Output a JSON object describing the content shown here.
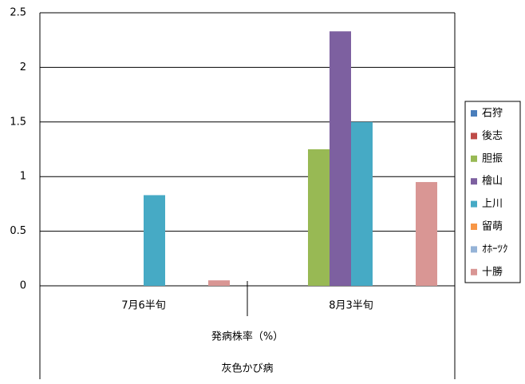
{
  "chart_data": {
    "type": "bar",
    "categories": [
      "7月6半旬",
      "8月3半旬"
    ],
    "category_groups": [
      "発病株率（%）",
      "灰色かび病"
    ],
    "series": [
      {
        "name": "石狩",
        "color": "#4a7ebb",
        "values": [
          0,
          0
        ]
      },
      {
        "name": "後志",
        "color": "#be4b48",
        "values": [
          0,
          0
        ]
      },
      {
        "name": "胆振",
        "color": "#98b954",
        "values": [
          0,
          1.25
        ]
      },
      {
        "name": "檜山",
        "color": "#7d60a0",
        "values": [
          0,
          2.33
        ]
      },
      {
        "name": "上川",
        "color": "#46aac5",
        "values": [
          0.83,
          1.5
        ]
      },
      {
        "name": "留萌",
        "color": "#f79646",
        "values": [
          0,
          0
        ]
      },
      {
        "name": "ｵﾎｰﾂｸ",
        "color": "#95b3d7",
        "values": [
          0,
          0
        ]
      },
      {
        "name": "十勝",
        "color": "#d99694",
        "values": [
          0.05,
          0.95
        ]
      }
    ],
    "ylim": [
      0,
      2.5
    ],
    "yticks": [
      0,
      0.5,
      1,
      1.5,
      2,
      2.5
    ],
    "grid": true,
    "legend": "right"
  }
}
